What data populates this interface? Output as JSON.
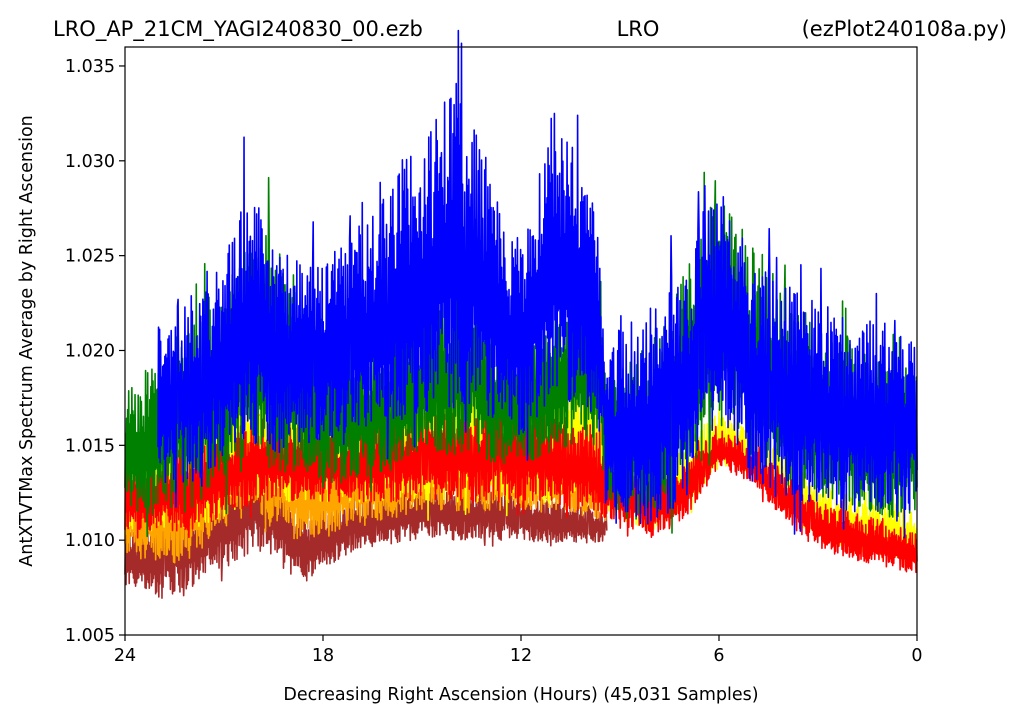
{
  "chart_data": {
    "type": "line",
    "title": {
      "left": "LRO_AP_21CM_YAGI240830_00.ezb",
      "center": "LRO",
      "right": "(ezPlot240108a.py)"
    },
    "xlabel": "Decreasing Right Ascension (Hours) (45,031 Samples)",
    "ylabel": "AntXTVTMax Spectrum Average by Right Ascension",
    "xlim": [
      24,
      0
    ],
    "ylim": [
      1.005,
      1.036
    ],
    "xticks": [
      24,
      18,
      12,
      6,
      0
    ],
    "xtick_labels": [
      "24",
      "18",
      "12",
      "6",
      "0"
    ],
    "yticks": [
      1.005,
      1.01,
      1.015,
      1.02,
      1.025,
      1.03,
      1.035
    ],
    "ytick_labels": [
      "1.005",
      "1.010",
      "1.015",
      "1.020",
      "1.025",
      "1.030",
      "1.035"
    ],
    "grid": false,
    "legend": "none",
    "series": [
      {
        "color": "#a52a2a",
        "x_range": [
          24,
          9.4
        ],
        "x": [
          24,
          23,
          22,
          21,
          20,
          19.5,
          19,
          18.5,
          18,
          17,
          16,
          15,
          14,
          13,
          12,
          11,
          10,
          9.4
        ],
        "low": [
          1.0075,
          1.0068,
          1.0075,
          1.0085,
          1.0095,
          1.0088,
          1.0082,
          1.0075,
          1.0085,
          1.0095,
          1.0098,
          1.01,
          1.01,
          1.01,
          1.01,
          1.0098,
          1.0098,
          1.01
        ],
        "high": [
          1.0105,
          1.011,
          1.012,
          1.0135,
          1.0148,
          1.014,
          1.0125,
          1.0115,
          1.0118,
          1.0122,
          1.0125,
          1.013,
          1.013,
          1.0128,
          1.0125,
          1.012,
          1.0118,
          1.0115
        ]
      },
      {
        "color": "#ffa500",
        "x_range": [
          24,
          9.4
        ],
        "x": [
          24,
          23,
          22,
          21,
          20.3,
          20,
          19,
          18,
          17,
          16,
          15,
          14,
          13,
          12,
          11,
          10,
          9.4
        ],
        "low": [
          1.0095,
          1.0085,
          1.009,
          1.0105,
          1.012,
          1.0115,
          1.01,
          1.01,
          1.011,
          1.011,
          1.0115,
          1.0115,
          1.0115,
          1.0115,
          1.0115,
          1.0112,
          1.011
        ],
        "high": [
          1.013,
          1.014,
          1.0155,
          1.017,
          1.018,
          1.017,
          1.0155,
          1.0145,
          1.015,
          1.0155,
          1.016,
          1.0162,
          1.016,
          1.0155,
          1.015,
          1.0145,
          1.014
        ]
      },
      {
        "color": "#ffff00",
        "x_range": [
          24,
          0
        ],
        "x": [
          24,
          22,
          20,
          18,
          16,
          14,
          12,
          10,
          9,
          8,
          7,
          6,
          5,
          4,
          3,
          2,
          1,
          0
        ],
        "low": [
          1.0105,
          1.0105,
          1.012,
          1.012,
          1.012,
          1.012,
          1.012,
          1.012,
          1.011,
          1.0105,
          1.0115,
          1.014,
          1.0135,
          1.0115,
          1.01,
          1.0095,
          1.009,
          1.009
        ],
        "high": [
          1.015,
          1.016,
          1.0185,
          1.0175,
          1.0185,
          1.0195,
          1.0195,
          1.019,
          1.015,
          1.014,
          1.015,
          1.017,
          1.016,
          1.0145,
          1.013,
          1.0125,
          1.012,
          1.0115
        ]
      },
      {
        "color": "#ff0000",
        "x_range": [
          24,
          0
        ],
        "x": [
          24,
          22,
          20,
          18,
          16,
          14,
          12,
          10,
          9,
          8,
          7,
          6,
          5,
          4,
          3,
          2,
          1,
          0
        ],
        "low": [
          1.0105,
          1.0105,
          1.012,
          1.012,
          1.012,
          1.012,
          1.012,
          1.0115,
          1.0108,
          1.0102,
          1.0112,
          1.0138,
          1.013,
          1.011,
          1.0095,
          1.009,
          1.0085,
          1.0082
        ],
        "high": [
          1.014,
          1.015,
          1.0165,
          1.016,
          1.0165,
          1.017,
          1.017,
          1.0165,
          1.014,
          1.013,
          1.014,
          1.016,
          1.015,
          1.0135,
          1.012,
          1.0115,
          1.011,
          1.0105
        ]
      },
      {
        "color": "#008000",
        "x_range": [
          24,
          0
        ],
        "x": [
          24,
          23,
          22.5,
          22,
          21,
          20,
          19,
          18,
          17,
          16,
          15,
          14,
          13.5,
          13,
          12,
          11,
          10.5,
          10,
          9.6,
          9.4,
          9,
          8,
          7,
          6,
          5,
          4,
          3,
          2,
          1,
          0
        ],
        "low": [
          1.0115,
          1.0112,
          1.0125,
          1.0125,
          1.013,
          1.014,
          1.0135,
          1.013,
          1.013,
          1.0138,
          1.0145,
          1.0145,
          1.0148,
          1.014,
          1.014,
          1.0145,
          1.015,
          1.015,
          1.0148,
          1.0125,
          1.011,
          1.011,
          1.0125,
          1.016,
          1.0155,
          1.013,
          1.012,
          1.0115,
          1.0112,
          1.011
        ],
        "high": [
          1.0185,
          1.0195,
          1.02,
          1.0215,
          1.024,
          1.027,
          1.0245,
          1.0215,
          1.0205,
          1.021,
          1.022,
          1.0235,
          1.024,
          1.022,
          1.0205,
          1.022,
          1.0235,
          1.024,
          1.023,
          1.0185,
          1.019,
          1.021,
          1.0245,
          1.028,
          1.026,
          1.023,
          1.0215,
          1.0205,
          1.0195,
          1.019
        ]
      },
      {
        "color": "#0000ff",
        "x_range": [
          23,
          0
        ],
        "x": [
          23,
          22,
          21,
          20.3,
          20,
          19.5,
          19,
          18.5,
          18,
          17,
          16.5,
          16,
          15,
          14.5,
          14,
          13.5,
          13,
          12.5,
          12,
          11.5,
          11,
          10.5,
          10,
          9.6,
          9.4,
          9,
          8,
          7,
          6.5,
          6,
          5.5,
          5,
          4,
          3,
          2,
          1,
          0
        ],
        "low": [
          1.013,
          1.013,
          1.014,
          1.0155,
          1.015,
          1.014,
          1.015,
          1.015,
          1.015,
          1.0155,
          1.0155,
          1.016,
          1.0165,
          1.017,
          1.017,
          1.017,
          1.0165,
          1.016,
          1.0155,
          1.0165,
          1.017,
          1.017,
          1.0165,
          1.0155,
          1.011,
          1.0108,
          1.0108,
          1.012,
          1.0145,
          1.016,
          1.015,
          1.013,
          1.012,
          1.0115,
          1.0115,
          1.0115,
          1.0115
        ],
        "high": [
          1.0215,
          1.023,
          1.0255,
          1.029,
          1.028,
          1.0255,
          1.025,
          1.0245,
          1.025,
          1.0265,
          1.0275,
          1.0295,
          1.031,
          1.033,
          1.0345,
          1.033,
          1.03,
          1.027,
          1.026,
          1.029,
          1.033,
          1.032,
          1.03,
          1.026,
          1.02,
          1.0215,
          1.0225,
          1.025,
          1.0275,
          1.0285,
          1.027,
          1.025,
          1.0235,
          1.0225,
          1.022,
          1.0215,
          1.021
        ]
      }
    ]
  }
}
